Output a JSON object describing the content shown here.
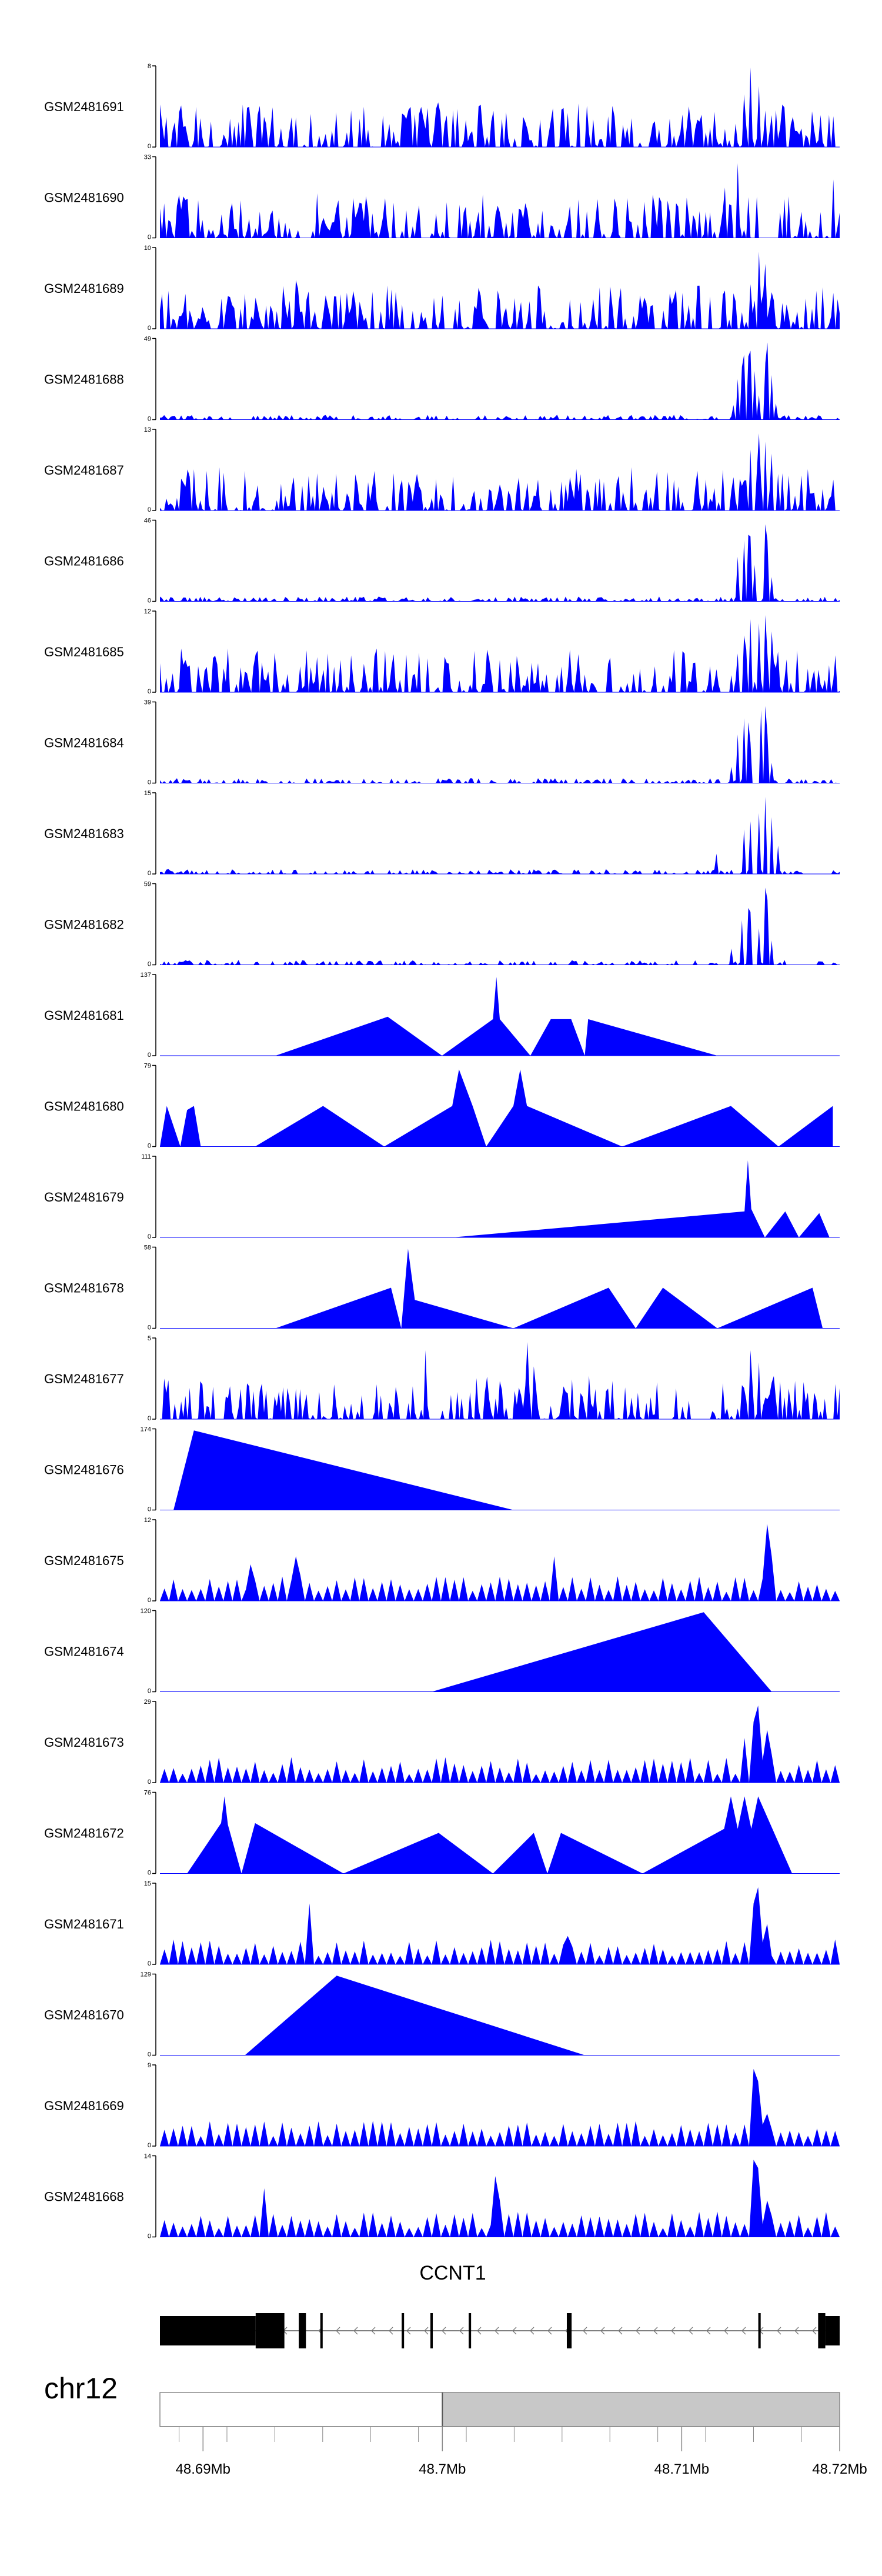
{
  "chart_data": {
    "type": "area",
    "title": "",
    "xlabel": "",
    "ylabel": "",
    "colors": {
      "signal": "#0000ff",
      "axis": "#000000",
      "gene": "#000000",
      "ideogram_light": "#ffffff",
      "ideogram_dark": "#c8c8c8"
    },
    "tracks": [
      {
        "name": "GSM2481691",
        "ymax": "8",
        "ymin": "0",
        "pattern": "noise",
        "peaks": [
          [
            0.28,
            0.45
          ],
          [
            0.41,
            0.55
          ],
          [
            0.47,
            0.5
          ],
          [
            0.6,
            0.42
          ],
          [
            0.77,
            0.4
          ],
          [
            0.86,
            0.65
          ],
          [
            0.87,
            0.98
          ],
          [
            0.88,
            0.75
          ],
          [
            0.89,
            0.45
          ],
          [
            0.99,
            0.38
          ]
        ]
      },
      {
        "name": "GSM2481690",
        "ymax": "33",
        "ymin": "0",
        "pattern": "triangles",
        "peaks": [
          [
            0.03,
            0.35
          ],
          [
            0.12,
            0.35
          ],
          [
            0.23,
            0.55
          ],
          [
            0.38,
            0.4
          ],
          [
            0.47,
            0.32
          ],
          [
            0.75,
            0.32
          ],
          [
            0.83,
            0.62
          ],
          [
            0.84,
            0.4
          ],
          [
            0.85,
            0.92
          ],
          [
            0.99,
            0.72
          ]
        ]
      },
      {
        "name": "GSM2481689",
        "ymax": "10",
        "ymin": "0",
        "pattern": "noise",
        "peaks": [
          [
            0.2,
            0.6
          ],
          [
            0.5,
            0.35
          ],
          [
            0.87,
            0.55
          ],
          [
            0.88,
            0.95
          ],
          [
            0.89,
            0.8
          ],
          [
            0.9,
            0.45
          ]
        ]
      },
      {
        "name": "GSM2481688",
        "ymax": "49",
        "ymin": "0",
        "pattern": "low",
        "peaks": [
          [
            0.845,
            0.18
          ],
          [
            0.85,
            0.5
          ],
          [
            0.855,
            0.65
          ],
          [
            0.86,
            0.8
          ],
          [
            0.865,
            0.78
          ],
          [
            0.87,
            0.85
          ],
          [
            0.875,
            0.6
          ],
          [
            0.88,
            0.3
          ],
          [
            0.89,
            0.7
          ],
          [
            0.895,
            0.95
          ],
          [
            0.9,
            0.55
          ],
          [
            0.905,
            0.2
          ]
        ]
      },
      {
        "name": "GSM2481687",
        "ymax": "13",
        "ymin": "0",
        "pattern": "noise",
        "peaks": [
          [
            0.38,
            0.3
          ],
          [
            0.87,
            0.75
          ],
          [
            0.88,
            0.95
          ],
          [
            0.89,
            0.85
          ],
          [
            0.9,
            0.7
          ],
          [
            0.91,
            0.45
          ],
          [
            0.99,
            0.38
          ]
        ]
      },
      {
        "name": "GSM2481686",
        "ymax": "46",
        "ymin": "0",
        "pattern": "low",
        "peaks": [
          [
            0.85,
            0.55
          ],
          [
            0.86,
            0.75
          ],
          [
            0.865,
            0.82
          ],
          [
            0.87,
            0.8
          ],
          [
            0.875,
            0.45
          ],
          [
            0.89,
            0.95
          ],
          [
            0.895,
            0.75
          ],
          [
            0.9,
            0.3
          ]
        ]
      },
      {
        "name": "GSM2481685",
        "ymax": "12",
        "ymin": "0",
        "pattern": "noise",
        "peaks": [
          [
            0.08,
            0.45
          ],
          [
            0.3,
            0.35
          ],
          [
            0.86,
            0.7
          ],
          [
            0.87,
            0.9
          ],
          [
            0.88,
            0.85
          ],
          [
            0.89,
            0.95
          ],
          [
            0.9,
            0.75
          ],
          [
            0.91,
            0.5
          ]
        ]
      },
      {
        "name": "GSM2481684",
        "ymax": "39",
        "ymin": "0",
        "pattern": "low",
        "peaks": [
          [
            0.84,
            0.2
          ],
          [
            0.85,
            0.6
          ],
          [
            0.86,
            0.8
          ],
          [
            0.865,
            0.75
          ],
          [
            0.87,
            0.5
          ],
          [
            0.885,
            0.9
          ],
          [
            0.89,
            0.95
          ],
          [
            0.895,
            0.6
          ],
          [
            0.9,
            0.25
          ]
        ]
      },
      {
        "name": "GSM2481683",
        "ymax": "15",
        "ymin": "0",
        "pattern": "low",
        "peaks": [
          [
            0.82,
            0.25
          ],
          [
            0.86,
            0.55
          ],
          [
            0.87,
            0.65
          ],
          [
            0.88,
            0.75
          ],
          [
            0.89,
            0.95
          ],
          [
            0.9,
            0.7
          ],
          [
            0.91,
            0.35
          ]
        ]
      },
      {
        "name": "GSM2481682",
        "ymax": "59",
        "ymin": "0",
        "pattern": "low",
        "peaks": [
          [
            0.84,
            0.2
          ],
          [
            0.855,
            0.55
          ],
          [
            0.865,
            0.7
          ],
          [
            0.87,
            0.65
          ],
          [
            0.88,
            0.45
          ],
          [
            0.89,
            0.95
          ],
          [
            0.895,
            0.8
          ],
          [
            0.9,
            0.3
          ]
        ]
      },
      {
        "name": "GSM2481681",
        "ymax": "137",
        "ymin": "0",
        "pattern": "sparse",
        "peaks": [
          [
            0.17,
            0.0
          ],
          [
            0.335,
            0.48
          ],
          [
            0.415,
            0.0
          ],
          [
            0.49,
            0.45
          ],
          [
            0.495,
            0.97
          ],
          [
            0.5,
            0.45
          ],
          [
            0.545,
            0.0
          ],
          [
            0.575,
            0.45
          ],
          [
            0.625,
            0.0
          ],
          [
            0.605,
            0.45
          ],
          [
            0.63,
            0.45
          ],
          [
            0.82,
            0.0
          ]
        ]
      },
      {
        "name": "GSM2481680",
        "ymax": "79",
        "ymin": "0",
        "pattern": "sparse",
        "peaks": [
          [
            0.0,
            0.0
          ],
          [
            0.01,
            0.5
          ],
          [
            0.03,
            0.0
          ],
          [
            0.04,
            0.45
          ],
          [
            0.06,
            0.0
          ],
          [
            0.05,
            0.5
          ],
          [
            0.14,
            0.0
          ],
          [
            0.24,
            0.5
          ],
          [
            0.33,
            0.0
          ],
          [
            0.43,
            0.5
          ],
          [
            0.44,
            0.95
          ],
          [
            0.46,
            0.5
          ],
          [
            0.48,
            0.0
          ],
          [
            0.52,
            0.5
          ],
          [
            0.53,
            0.95
          ],
          [
            0.54,
            0.5
          ],
          [
            0.68,
            0.0
          ],
          [
            0.84,
            0.5
          ],
          [
            0.91,
            0.0
          ],
          [
            0.99,
            0.5
          ]
        ]
      },
      {
        "name": "GSM2481679",
        "ymax": "111",
        "ymin": "0",
        "pattern": "sparse",
        "peaks": [
          [
            0.43,
            0.0
          ],
          [
            0.86,
            0.32
          ],
          [
            0.865,
            0.95
          ],
          [
            0.87,
            0.35
          ],
          [
            0.89,
            0.0
          ],
          [
            0.92,
            0.32
          ],
          [
            0.94,
            0.0
          ],
          [
            0.97,
            0.3
          ],
          [
            0.985,
            0.0
          ]
        ]
      },
      {
        "name": "GSM2481678",
        "ymax": "58",
        "ymin": "0",
        "pattern": "sparse",
        "peaks": [
          [
            0.17,
            0.0
          ],
          [
            0.34,
            0.5
          ],
          [
            0.355,
            0.0
          ],
          [
            0.365,
            0.98
          ],
          [
            0.375,
            0.35
          ],
          [
            0.52,
            0.0
          ],
          [
            0.66,
            0.5
          ],
          [
            0.7,
            0.0
          ],
          [
            0.74,
            0.5
          ],
          [
            0.82,
            0.0
          ],
          [
            0.96,
            0.5
          ],
          [
            0.975,
            0.0
          ]
        ]
      },
      {
        "name": "GSM2481677",
        "ymax": "5",
        "ymin": "0",
        "pattern": "noise",
        "peaks": [
          [
            0.39,
            0.85
          ],
          [
            0.54,
            0.95
          ],
          [
            0.55,
            0.65
          ],
          [
            0.87,
            0.85
          ],
          [
            0.88,
            0.7
          ],
          [
            0.9,
            0.45
          ]
        ]
      },
      {
        "name": "GSM2481676",
        "ymax": "174",
        "ymin": "0",
        "pattern": "sparse",
        "peaks": [
          [
            0.02,
            0.0
          ],
          [
            0.05,
            0.98
          ],
          [
            0.52,
            0.0
          ]
        ]
      },
      {
        "name": "GSM2481675",
        "ymax": "12",
        "ymin": "0",
        "pattern": "triangles_dense",
        "peaks": [
          [
            0.13,
            0.45
          ],
          [
            0.2,
            0.55
          ],
          [
            0.58,
            0.55
          ],
          [
            0.89,
            0.95
          ],
          [
            0.9,
            0.55
          ]
        ]
      },
      {
        "name": "GSM2481674",
        "ymax": "120",
        "ymin": "0",
        "pattern": "sparse",
        "peaks": [
          [
            0.4,
            0.0
          ],
          [
            0.8,
            0.98
          ],
          [
            0.9,
            0.0
          ]
        ]
      },
      {
        "name": "GSM2481673",
        "ymax": "29",
        "ymin": "0",
        "pattern": "triangles_dense",
        "peaks": [
          [
            0.86,
            0.55
          ],
          [
            0.875,
            0.75
          ],
          [
            0.88,
            0.95
          ],
          [
            0.89,
            0.65
          ],
          [
            0.9,
            0.35
          ]
        ]
      },
      {
        "name": "GSM2481672",
        "ymax": "76",
        "ymin": "0",
        "pattern": "sparse",
        "peaks": [
          [
            0.04,
            0.0
          ],
          [
            0.09,
            0.62
          ],
          [
            0.095,
            0.95
          ],
          [
            0.1,
            0.6
          ],
          [
            0.12,
            0.0
          ],
          [
            0.14,
            0.62
          ],
          [
            0.27,
            0.0
          ],
          [
            0.41,
            0.5
          ],
          [
            0.49,
            0.0
          ],
          [
            0.55,
            0.5
          ],
          [
            0.57,
            0.0
          ],
          [
            0.59,
            0.5
          ],
          [
            0.71,
            0.0
          ],
          [
            0.83,
            0.55
          ],
          [
            0.84,
            0.95
          ],
          [
            0.85,
            0.55
          ],
          [
            0.86,
            0.95
          ],
          [
            0.87,
            0.55
          ],
          [
            0.88,
            0.95
          ],
          [
            0.93,
            0.0
          ]
        ]
      },
      {
        "name": "GSM2481671",
        "ymax": "15",
        "ymin": "0",
        "pattern": "triangles_dense",
        "peaks": [
          [
            0.22,
            0.75
          ],
          [
            0.6,
            0.35
          ],
          [
            0.87,
            0.75
          ],
          [
            0.88,
            0.95
          ],
          [
            0.89,
            0.5
          ]
        ]
      },
      {
        "name": "GSM2481670",
        "ymax": "129",
        "ymin": "0",
        "pattern": "sparse",
        "peaks": [
          [
            0.125,
            0.0
          ],
          [
            0.26,
            0.98
          ],
          [
            0.625,
            0.0
          ]
        ]
      },
      {
        "name": "GSM2481669",
        "ymax": "9",
        "ymin": "0",
        "pattern": "triangles_dense",
        "peaks": [
          [
            0.87,
            0.55
          ],
          [
            0.875,
            0.95
          ],
          [
            0.88,
            0.8
          ],
          [
            0.89,
            0.4
          ]
        ]
      },
      {
        "name": "GSM2481668",
        "ymax": "14",
        "ymin": "0",
        "pattern": "triangles_dense",
        "peaks": [
          [
            0.15,
            0.6
          ],
          [
            0.49,
            0.75
          ],
          [
            0.5,
            0.45
          ],
          [
            0.87,
            0.55
          ],
          [
            0.875,
            0.95
          ],
          [
            0.88,
            0.85
          ],
          [
            0.89,
            0.45
          ]
        ]
      }
    ],
    "gene": {
      "name": "CCNT1",
      "strand": "-",
      "span": [
        48.6882,
        48.7166
      ],
      "exons": [
        [
          48.6882,
          48.6922,
          "utr"
        ],
        [
          48.6922,
          48.6934,
          "cds"
        ],
        [
          48.694,
          48.6943,
          "cds"
        ],
        [
          48.6949,
          48.695,
          "cds"
        ],
        [
          48.6983,
          48.6984,
          "cds"
        ],
        [
          48.6995,
          48.6996,
          "cds"
        ],
        [
          48.7011,
          48.7012,
          "cds"
        ],
        [
          48.7052,
          48.7054,
          "cds"
        ],
        [
          48.7132,
          48.7133,
          "cds"
        ],
        [
          48.7157,
          48.716,
          "cds"
        ],
        [
          48.716,
          48.7166,
          "utr"
        ]
      ]
    },
    "chromosome": {
      "name": "chr12",
      "divide_at": 48.7,
      "xlim": [
        48.6882,
        48.7166
      ],
      "xticks": [
        {
          "value": 48.69,
          "label": "48.69Mb"
        },
        {
          "value": 48.7,
          "label": "48.7Mb"
        },
        {
          "value": 48.71,
          "label": "48.71Mb"
        },
        {
          "value": 48.72,
          "label": "48.72Mb"
        }
      ]
    }
  }
}
